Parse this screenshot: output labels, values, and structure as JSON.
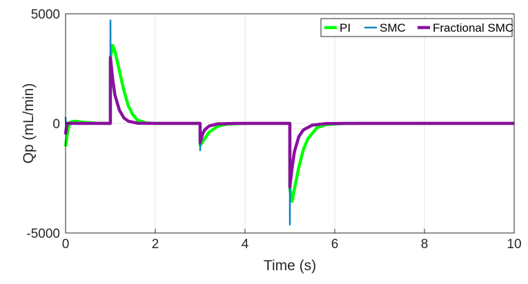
{
  "chart_data": {
    "type": "line",
    "title": "",
    "xlabel": "Time (s)",
    "ylabel": "Qp (mL/min)",
    "xlim": [
      0,
      10
    ],
    "ylim": [
      -5000,
      5000
    ],
    "xticks": [
      "0",
      "2",
      "4",
      "6",
      "8",
      "10"
    ],
    "yticks": [
      "-5000",
      "0",
      "5000"
    ],
    "grid": true,
    "legend_position": "top-right",
    "series": [
      {
        "name": "PI",
        "color": "#00ff00",
        "x": [
          0,
          0.05,
          0.1,
          0.2,
          0.4,
          0.7,
          0.999,
          1,
          1.05,
          1.1,
          1.2,
          1.3,
          1.4,
          1.5,
          1.6,
          1.8,
          2,
          2.999,
          3,
          3.1,
          3.2,
          3.4,
          3.6,
          4,
          4.999,
          5,
          5.05,
          5.1,
          5.2,
          5.3,
          5.4,
          5.6,
          5.8,
          6.2,
          10
        ],
        "y": [
          -1050,
          -300,
          50,
          100,
          50,
          10,
          0,
          3000,
          3550,
          3300,
          2400,
          1500,
          800,
          400,
          150,
          20,
          0,
          0,
          -1000,
          -700,
          -400,
          -120,
          -30,
          0,
          0,
          -3000,
          -3550,
          -3000,
          -2000,
          -1200,
          -700,
          -200,
          -60,
          0,
          0
        ]
      },
      {
        "name": "SMC",
        "color": "#0e84c4",
        "x": [
          0,
          0.01,
          0.04,
          0.999,
          1,
          1.005,
          1.05,
          1.1,
          1.2,
          1.3,
          1.4,
          1.6,
          2,
          2.999,
          3,
          3.005,
          3.05,
          3.1,
          3.2,
          3.4,
          3.8,
          4.999,
          5,
          5.005,
          5.05,
          5.1,
          5.2,
          5.3,
          5.5,
          5.8,
          6.5,
          10
        ],
        "y": [
          300,
          -300,
          0,
          0,
          4700,
          2900,
          2000,
          1300,
          600,
          250,
          100,
          10,
          0,
          0,
          -1230,
          -880,
          -500,
          -300,
          -120,
          -20,
          0,
          0,
          -4620,
          -2900,
          -2000,
          -1300,
          -600,
          -300,
          -80,
          -10,
          0,
          0
        ]
      },
      {
        "name": "Fractional SMC",
        "color": "#8b0fa0",
        "x": [
          0,
          0.03,
          0.999,
          1,
          1.05,
          1.1,
          1.2,
          1.3,
          1.4,
          1.6,
          2,
          2.999,
          3,
          3.05,
          3.1,
          3.2,
          3.4,
          3.8,
          4.999,
          5,
          5.05,
          5.1,
          5.2,
          5.3,
          5.5,
          5.8,
          6.5,
          10
        ],
        "y": [
          -500,
          0,
          0,
          3000,
          2000,
          1300,
          600,
          250,
          100,
          10,
          0,
          0,
          -880,
          -500,
          -300,
          -120,
          -20,
          0,
          0,
          -2900,
          -2000,
          -1300,
          -600,
          -300,
          -80,
          -10,
          0,
          0
        ]
      }
    ]
  }
}
